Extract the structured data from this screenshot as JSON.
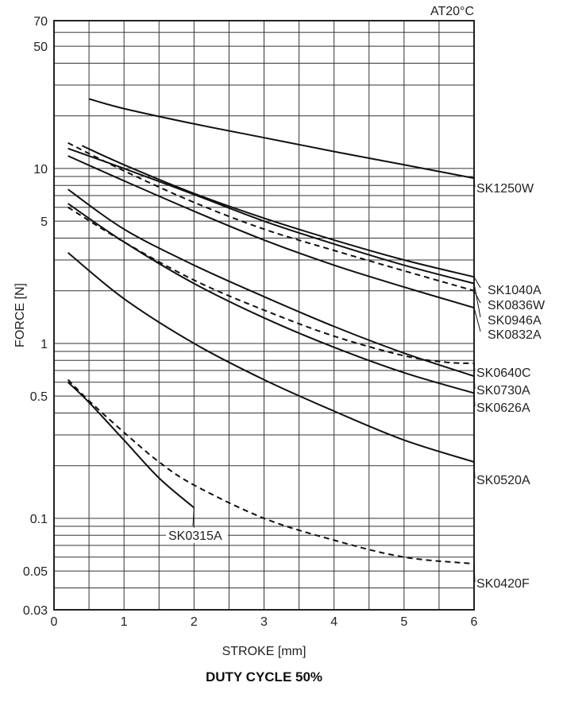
{
  "chart_data": {
    "type": "line",
    "title": "DUTY CYCLE 50%",
    "annotation": "AT20°C",
    "xlabel": "STROKE  [mm]",
    "ylabel": "FORCE  [N]",
    "xlim": [
      0,
      6
    ],
    "ylim": [
      0.03,
      70
    ],
    "y_scale": "log",
    "grid": true,
    "x_ticks": [
      "0",
      "1",
      "2",
      "3",
      "4",
      "5",
      "6"
    ],
    "x_tick_values": [
      0,
      1,
      2,
      3,
      4,
      5,
      6
    ],
    "y_ticks": [
      "0.03",
      "0.05",
      "0.1",
      "0.5",
      "1",
      "5",
      "10",
      "50",
      "70"
    ],
    "y_tick_values": [
      0.03,
      0.05,
      0.1,
      0.5,
      1,
      5,
      10,
      50,
      70
    ],
    "series": [
      {
        "name": "SK1250W",
        "style": "solid",
        "x": [
          0.5,
          1,
          2,
          3,
          4,
          5,
          6
        ],
        "y": [
          25,
          22,
          18,
          15,
          12.5,
          10.5,
          8.8
        ]
      },
      {
        "name": "SK1040A",
        "style": "solid",
        "x": [
          0.4,
          1,
          2,
          3,
          4,
          5,
          6
        ],
        "y": [
          13.5,
          10.5,
          7.2,
          5.2,
          3.9,
          3.0,
          2.4
        ]
      },
      {
        "name": "SK0836W",
        "style": "dashed",
        "x": [
          0.2,
          1,
          2,
          3,
          4,
          5,
          6
        ],
        "y": [
          14,
          9.7,
          6.4,
          4.5,
          3.4,
          2.6,
          2.0
        ]
      },
      {
        "name": "SK0946A",
        "style": "solid",
        "x": [
          0.2,
          1,
          2,
          3,
          4,
          5,
          6
        ],
        "y": [
          13,
          10,
          7.1,
          5.0,
          3.7,
          2.8,
          2.2
        ]
      },
      {
        "name": "SK0832A",
        "style": "solid",
        "x": [
          0.2,
          1,
          2,
          3,
          4,
          5,
          6
        ],
        "y": [
          11.8,
          8.5,
          5.7,
          3.9,
          2.8,
          2.1,
          1.6
        ]
      },
      {
        "name": "SK0640C",
        "style": "dashed",
        "x": [
          0.2,
          1,
          2,
          3,
          4,
          5,
          5.6,
          6
        ],
        "y": [
          6.0,
          3.8,
          2.3,
          1.55,
          1.1,
          0.85,
          0.78,
          0.77
        ]
      },
      {
        "name": "SK0730A",
        "style": "solid",
        "x": [
          0.2,
          1,
          2,
          3,
          4,
          5,
          6
        ],
        "y": [
          7.6,
          4.5,
          2.8,
          1.85,
          1.25,
          0.88,
          0.65
        ]
      },
      {
        "name": "SK0626A",
        "style": "solid",
        "x": [
          0.2,
          1,
          2,
          3,
          4,
          5,
          6
        ],
        "y": [
          6.3,
          3.8,
          2.2,
          1.4,
          0.95,
          0.68,
          0.52
        ]
      },
      {
        "name": "SK0520A",
        "style": "solid",
        "x": [
          0.2,
          1,
          2,
          3,
          4,
          5,
          6
        ],
        "y": [
          3.3,
          1.8,
          1.0,
          0.62,
          0.41,
          0.28,
          0.21
        ]
      },
      {
        "name": "SK0315A",
        "style": "solid",
        "x": [
          0.2,
          0.5,
          1,
          1.5,
          2
        ],
        "y": [
          0.6,
          0.46,
          0.28,
          0.17,
          0.115
        ]
      },
      {
        "name": "SK0420F",
        "style": "dashed",
        "x": [
          0.2,
          0.5,
          1,
          1.5,
          2,
          3,
          4,
          5,
          6
        ],
        "y": [
          0.62,
          0.47,
          0.31,
          0.21,
          0.155,
          0.1,
          0.075,
          0.06,
          0.055
        ]
      }
    ]
  }
}
